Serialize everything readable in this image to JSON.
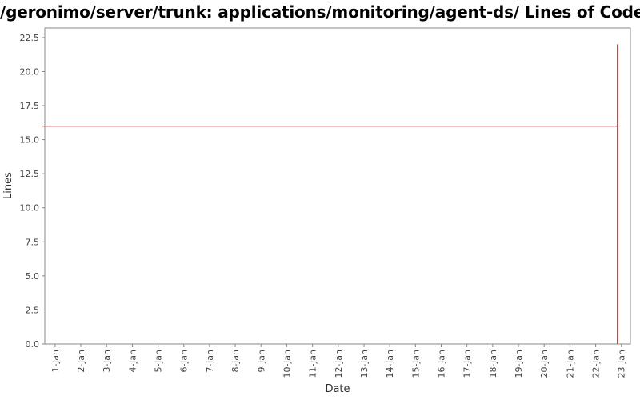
{
  "chart_data": {
    "type": "line",
    "title": "/geronimo/server/trunk: applications/monitoring/agent-ds/ Lines of Code",
    "xlabel": "Date",
    "ylabel": "Lines",
    "ylim": [
      0,
      23.2
    ],
    "yticks": [
      "0.0",
      "2.5",
      "5.0",
      "7.5",
      "10.0",
      "12.5",
      "15.0",
      "17.5",
      "20.0",
      "22.5"
    ],
    "ytick_values": [
      0,
      2.5,
      5,
      7.5,
      10,
      12.5,
      15,
      17.5,
      20,
      22.5
    ],
    "xlim": [
      0.6,
      23.35
    ],
    "categories": [
      "1-Jan",
      "2-Jan",
      "3-Jan",
      "4-Jan",
      "5-Jan",
      "6-Jan",
      "7-Jan",
      "8-Jan",
      "9-Jan",
      "10-Jan",
      "11-Jan",
      "12-Jan",
      "13-Jan",
      "14-Jan",
      "15-Jan",
      "16-Jan",
      "17-Jan",
      "18-Jan",
      "19-Jan",
      "20-Jan",
      "21-Jan",
      "22-Jan",
      "23-Jan"
    ],
    "series": [
      {
        "name": "Lines of Code",
        "color": "#cc0000",
        "x": [
          0.5,
          22.85,
          22.85,
          22.85
        ],
        "y": [
          16,
          16,
          0,
          22
        ]
      }
    ],
    "grid": false,
    "legend": "none"
  }
}
